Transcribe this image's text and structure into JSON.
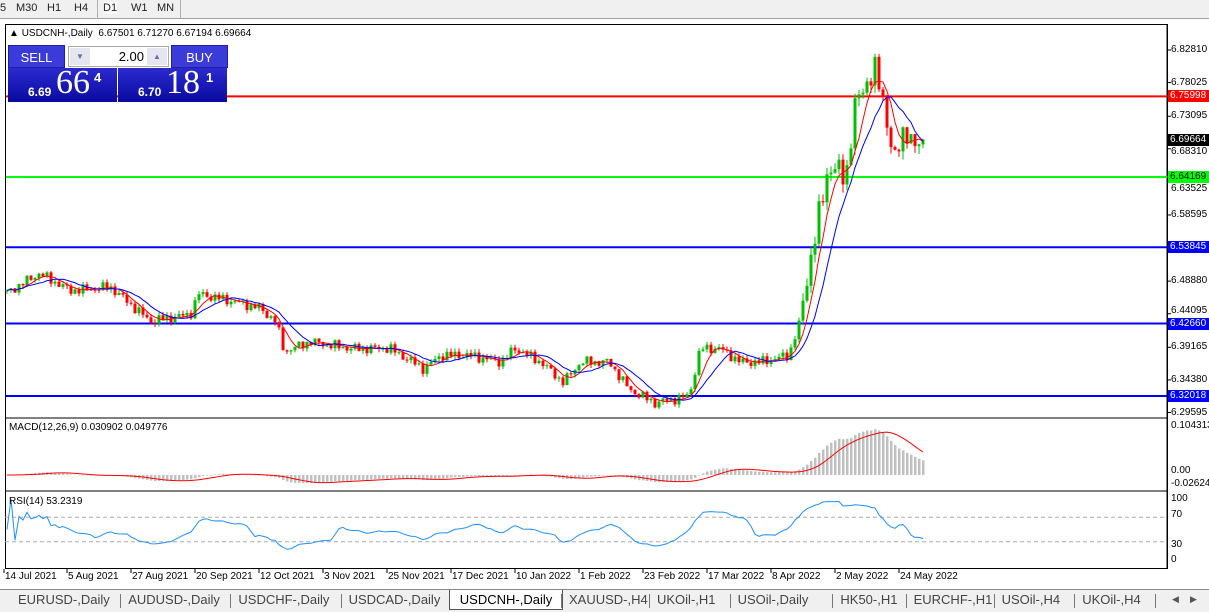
{
  "timeframes": [
    "5",
    "M30",
    "H1",
    "H4",
    "D1",
    "W1",
    "MN"
  ],
  "active_timeframe": "D1",
  "chart": {
    "symbol_title": "USDCNH-,Daily",
    "ohlc": "6.67501 6.71270 6.67194 6.69664"
  },
  "trade_panel": {
    "sell_label": "SELL",
    "buy_label": "BUY",
    "lot_value": "2.00",
    "sell_prefix": "6.69",
    "sell_big": "66",
    "sell_sup": "4",
    "buy_prefix": "6.70",
    "buy_big": "18",
    "buy_sup": "1"
  },
  "indicators": {
    "macd_label": "MACD(12,26,9) 0.030902 0.049776",
    "rsi_label": "RSI(14) 53.2319",
    "macd_axis": [
      "0.104313",
      "0.00",
      "-0.026249"
    ],
    "rsi_axis": [
      "100",
      "70",
      "30",
      "0"
    ]
  },
  "chart_data": {
    "type": "candlestick",
    "price_axis": [
      "6.82810",
      "6.78025",
      "6.73095",
      "6.68310",
      "6.63525",
      "6.58595",
      "6.48880",
      "6.44095",
      "6.39165",
      "6.34380",
      "6.29595"
    ],
    "current_price": "6.69664",
    "levels": [
      {
        "price": "6.75998",
        "color": "#ff0000"
      },
      {
        "price": "6.64169",
        "color": "#00ff00"
      },
      {
        "price": "6.53845",
        "color": "#0000ff"
      },
      {
        "price": "6.42660",
        "color": "#0000ff"
      },
      {
        "price": "6.32018",
        "color": "#0000ff"
      }
    ],
    "date_labels": [
      "14 Jul 2021",
      "5 Aug 2021",
      "27 Aug 2021",
      "20 Sep 2021",
      "12 Oct 2021",
      "3 Nov 2021",
      "25 Nov 2021",
      "17 Dec 2021",
      "10 Jan 2022",
      "1 Feb 2022",
      "23 Feb 2022",
      "17 Mar 2022",
      "8 Apr 2022",
      "2 May 2022",
      "24 May 2022"
    ],
    "closes": [
      [
        "2021-07-14",
        6.47
      ],
      [
        "2021-07-26",
        6.5
      ],
      [
        "2021-08-06",
        6.475
      ],
      [
        "2021-08-20",
        6.48
      ],
      [
        "2021-09-03",
        6.43
      ],
      [
        "2021-09-17",
        6.44
      ],
      [
        "2021-09-20",
        6.47
      ],
      [
        "2021-10-01",
        6.46
      ],
      [
        "2021-10-11",
        6.45
      ],
      [
        "2021-10-17",
        6.43
      ],
      [
        "2021-10-20",
        6.385
      ],
      [
        "2021-10-29",
        6.4
      ],
      [
        "2021-11-12",
        6.39
      ],
      [
        "2021-11-26",
        6.39
      ],
      [
        "2021-12-08",
        6.36
      ],
      [
        "2021-12-14",
        6.38
      ],
      [
        "2021-12-24",
        6.38
      ],
      [
        "2022-01-04",
        6.37
      ],
      [
        "2022-01-09",
        6.39
      ],
      [
        "2022-01-18",
        6.37
      ],
      [
        "2022-01-26",
        6.34
      ],
      [
        "2022-02-01",
        6.37
      ],
      [
        "2022-02-11",
        6.37
      ],
      [
        "2022-02-18",
        6.33
      ],
      [
        "2022-02-27",
        6.31
      ],
      [
        "2022-03-11",
        6.32
      ],
      [
        "2022-03-15",
        6.39
      ],
      [
        "2022-03-22",
        6.39
      ],
      [
        "2022-03-29",
        6.37
      ],
      [
        "2022-04-05",
        6.37
      ],
      [
        "2022-04-15",
        6.38
      ],
      [
        "2022-04-19",
        6.43
      ],
      [
        "2022-04-22",
        6.51
      ],
      [
        "2022-04-26",
        6.59
      ],
      [
        "2022-04-29",
        6.66
      ],
      [
        "2022-05-05",
        6.64
      ],
      [
        "2022-05-08",
        6.74
      ],
      [
        "2022-05-12",
        6.78
      ],
      [
        "2022-05-15",
        6.8
      ],
      [
        "2022-05-19",
        6.74
      ],
      [
        "2022-05-22",
        6.66
      ],
      [
        "2022-05-26",
        6.72
      ],
      [
        "2022-05-29",
        6.68
      ],
      [
        "2022-06-02",
        6.69664
      ]
    ],
    "colors": {
      "bull": "#00c000",
      "bear": "#ff0000",
      "ma_fast": "#ff0000",
      "ma_slow": "#0000ff",
      "macd_hist": "#c0c0c0",
      "macd_signal": "#ff0000",
      "rsi": "#1e90ff"
    }
  },
  "tabs": [
    "EURUSD-,Daily",
    "AUDUSD-,Daily",
    "USDCHF-,Daily",
    "USDCAD-,Daily",
    "USDCNH-,Daily",
    "XAUUSD-,H4",
    "UKOil-,H1",
    "USOil-,Daily",
    "HK50-,H1",
    "EURCHF-,H1",
    "USOil-,H4",
    "UKOil-,H4"
  ],
  "active_tab": "USDCNH-,Daily"
}
